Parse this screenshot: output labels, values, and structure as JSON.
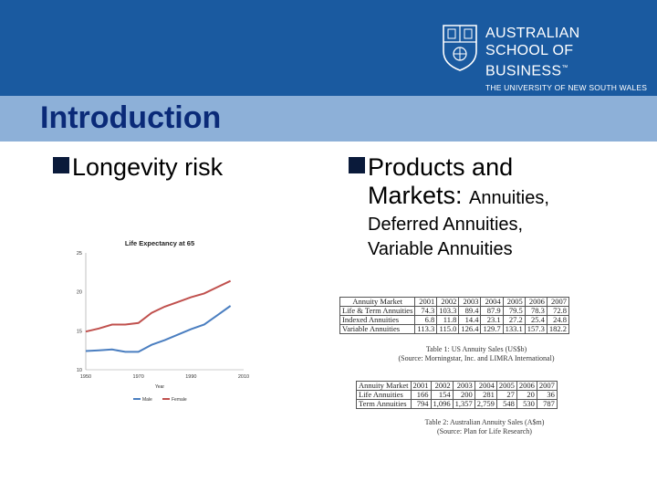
{
  "header": {
    "logo_line1": "AUSTRALIAN",
    "logo_line2": "SCHOOL OF BUSINESS",
    "logo_tm": "™",
    "logo_line3": "THE UNIVERSITY OF NEW SOUTH WALES",
    "banner_color": "#1a5aa0",
    "title_bar_color": "#8db0d8"
  },
  "slide": {
    "title": "Introduction",
    "bullet_left": "Longevity risk",
    "bullet_right_main": "Products and",
    "bullet_right_line2": "Markets:",
    "bullet_right_line2_small": "Annuities,",
    "bullet_right_sub1": "Deferred Annuities,",
    "bullet_right_sub2": "Variable Annuities"
  },
  "chart_data": {
    "type": "line",
    "title": "Life Expectancy at 65",
    "xlabel": "Year",
    "ylabel": "",
    "x": [
      1950,
      1955,
      1960,
      1965,
      1970,
      1975,
      1980,
      1985,
      1990,
      1995,
      2000,
      2005
    ],
    "xticks": [
      1950,
      1970,
      1990,
      2010
    ],
    "yticks": [
      10,
      15,
      20,
      25
    ],
    "xlim": [
      1950,
      2010
    ],
    "ylim": [
      10,
      25
    ],
    "series": [
      {
        "name": "Male",
        "color": "#4a7ec0",
        "values": [
          12.4,
          12.5,
          12.6,
          12.3,
          12.3,
          13.2,
          13.8,
          14.5,
          15.2,
          15.8,
          17.0,
          18.2
        ]
      },
      {
        "name": "Female",
        "color": "#c0504d",
        "values": [
          14.9,
          15.3,
          15.8,
          15.8,
          16.0,
          17.3,
          18.1,
          18.7,
          19.3,
          19.8,
          20.6,
          21.4
        ]
      }
    ]
  },
  "table1": {
    "headers": [
      "Annuity Market",
      "2001",
      "2002",
      "2003",
      "2004",
      "2005",
      "2006",
      "2007"
    ],
    "rows": [
      [
        "Life & Term Annuities",
        "74.3",
        "103.3",
        "89.4",
        "87.9",
        "79.5",
        "78.3",
        "72.8"
      ],
      [
        "Indexed Annuities",
        "6.8",
        "11.8",
        "14.4",
        "23.1",
        "27.2",
        "25.4",
        "24.8"
      ],
      [
        "Variable Annuities",
        "113.3",
        "115.0",
        "126.4",
        "129.7",
        "133.1",
        "157.3",
        "182.2"
      ]
    ],
    "caption1": "Table 1: US Annuity Sales (US$b)",
    "caption2": "(Source: Morningstar, Inc. and LIMRA International)"
  },
  "table2": {
    "headers": [
      "Annuity Market",
      "2001",
      "2002",
      "2003",
      "2004",
      "2005",
      "2006",
      "2007"
    ],
    "rows": [
      [
        "Life Annuities",
        "166",
        "154",
        "200",
        "281",
        "27",
        "20",
        "36"
      ],
      [
        "Term Annuities",
        "794",
        "1,096",
        "1,357",
        "2,759",
        "548",
        "530",
        "787"
      ]
    ],
    "caption1": "Table 2: Australian Annuity Sales (A$m)",
    "caption2": "(Source: Plan for Life Research)"
  }
}
